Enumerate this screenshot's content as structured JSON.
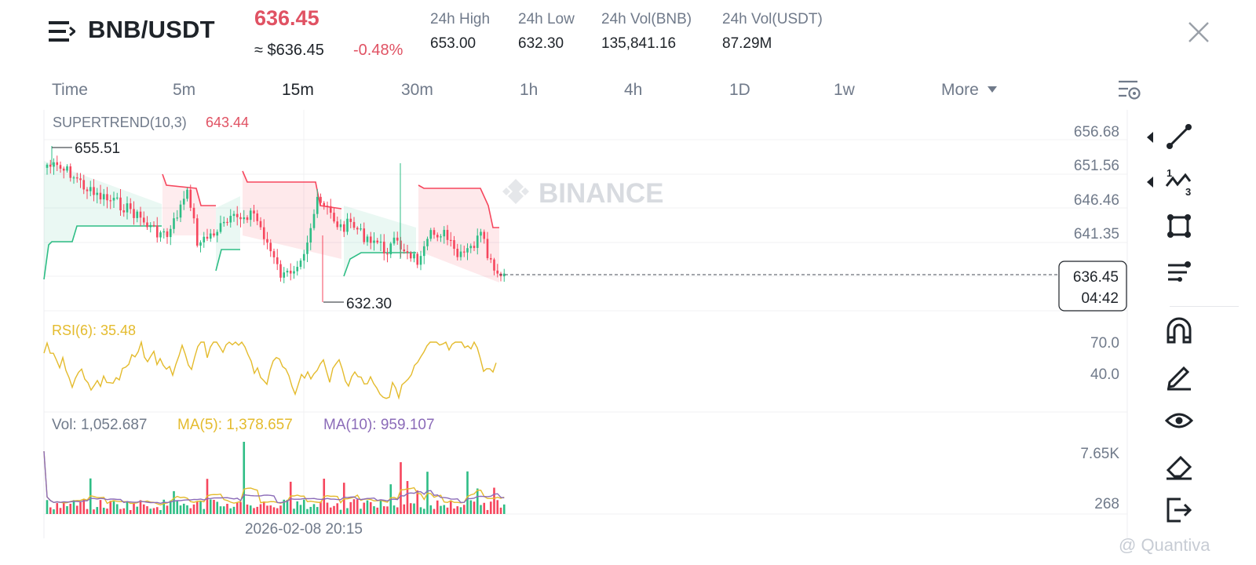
{
  "header": {
    "pair": "BNB/USDT",
    "last_price": "636.45",
    "approx_price": "≈ $636.45",
    "change_pct": "-0.48%",
    "stats": [
      {
        "label": "24h High",
        "value": "653.00"
      },
      {
        "label": "24h Low",
        "value": "632.30"
      },
      {
        "label": "24h Vol(BNB)",
        "value": "135,841.16"
      },
      {
        "label": "24h Vol(USDT)",
        "value": "87.29M"
      }
    ]
  },
  "timeframes": [
    "Time",
    "5m",
    "15m",
    "30m",
    "1h",
    "4h",
    "1D",
    "1w",
    "More"
  ],
  "active_timeframe": "15m",
  "indicators": {
    "supertrend_label": "SUPERTREND(10,3)",
    "supertrend_value": "643.44",
    "rsi_label": "RSI(6): 35.48",
    "vol_label": "Vol: 1,052.687",
    "ma5_label": "MA(5): 1,378.657",
    "ma10_label": "MA(10): 959.107"
  },
  "price_axis": [
    "656.68",
    "651.56",
    "646.46",
    "641.35"
  ],
  "rsi_axis": [
    "70.0",
    "40.0"
  ],
  "vol_axis": [
    "7.65K",
    "268"
  ],
  "annotations": {
    "high_marker": "655.51",
    "low_marker": "632.30",
    "current_price_tag": "636.45",
    "countdown": "04:42"
  },
  "time_axis_label": "2026-02-08 20:15",
  "watermarks": {
    "chart": "BINANCE",
    "corner": "@ Quantiva"
  },
  "toolbar": [
    "line-tool",
    "fibonacci-tool",
    "shape-tool",
    "indicator-tool",
    "magnet-tool",
    "pencil-tool",
    "visibility-tool",
    "eraser-tool",
    "exit-tool"
  ],
  "colors": {
    "down": "#f6465d",
    "up": "#2ebd85",
    "price_red": "#e05263",
    "rsi": "#e4bb2d",
    "ma10": "#8b6bb8",
    "muted": "#707a8a"
  }
}
